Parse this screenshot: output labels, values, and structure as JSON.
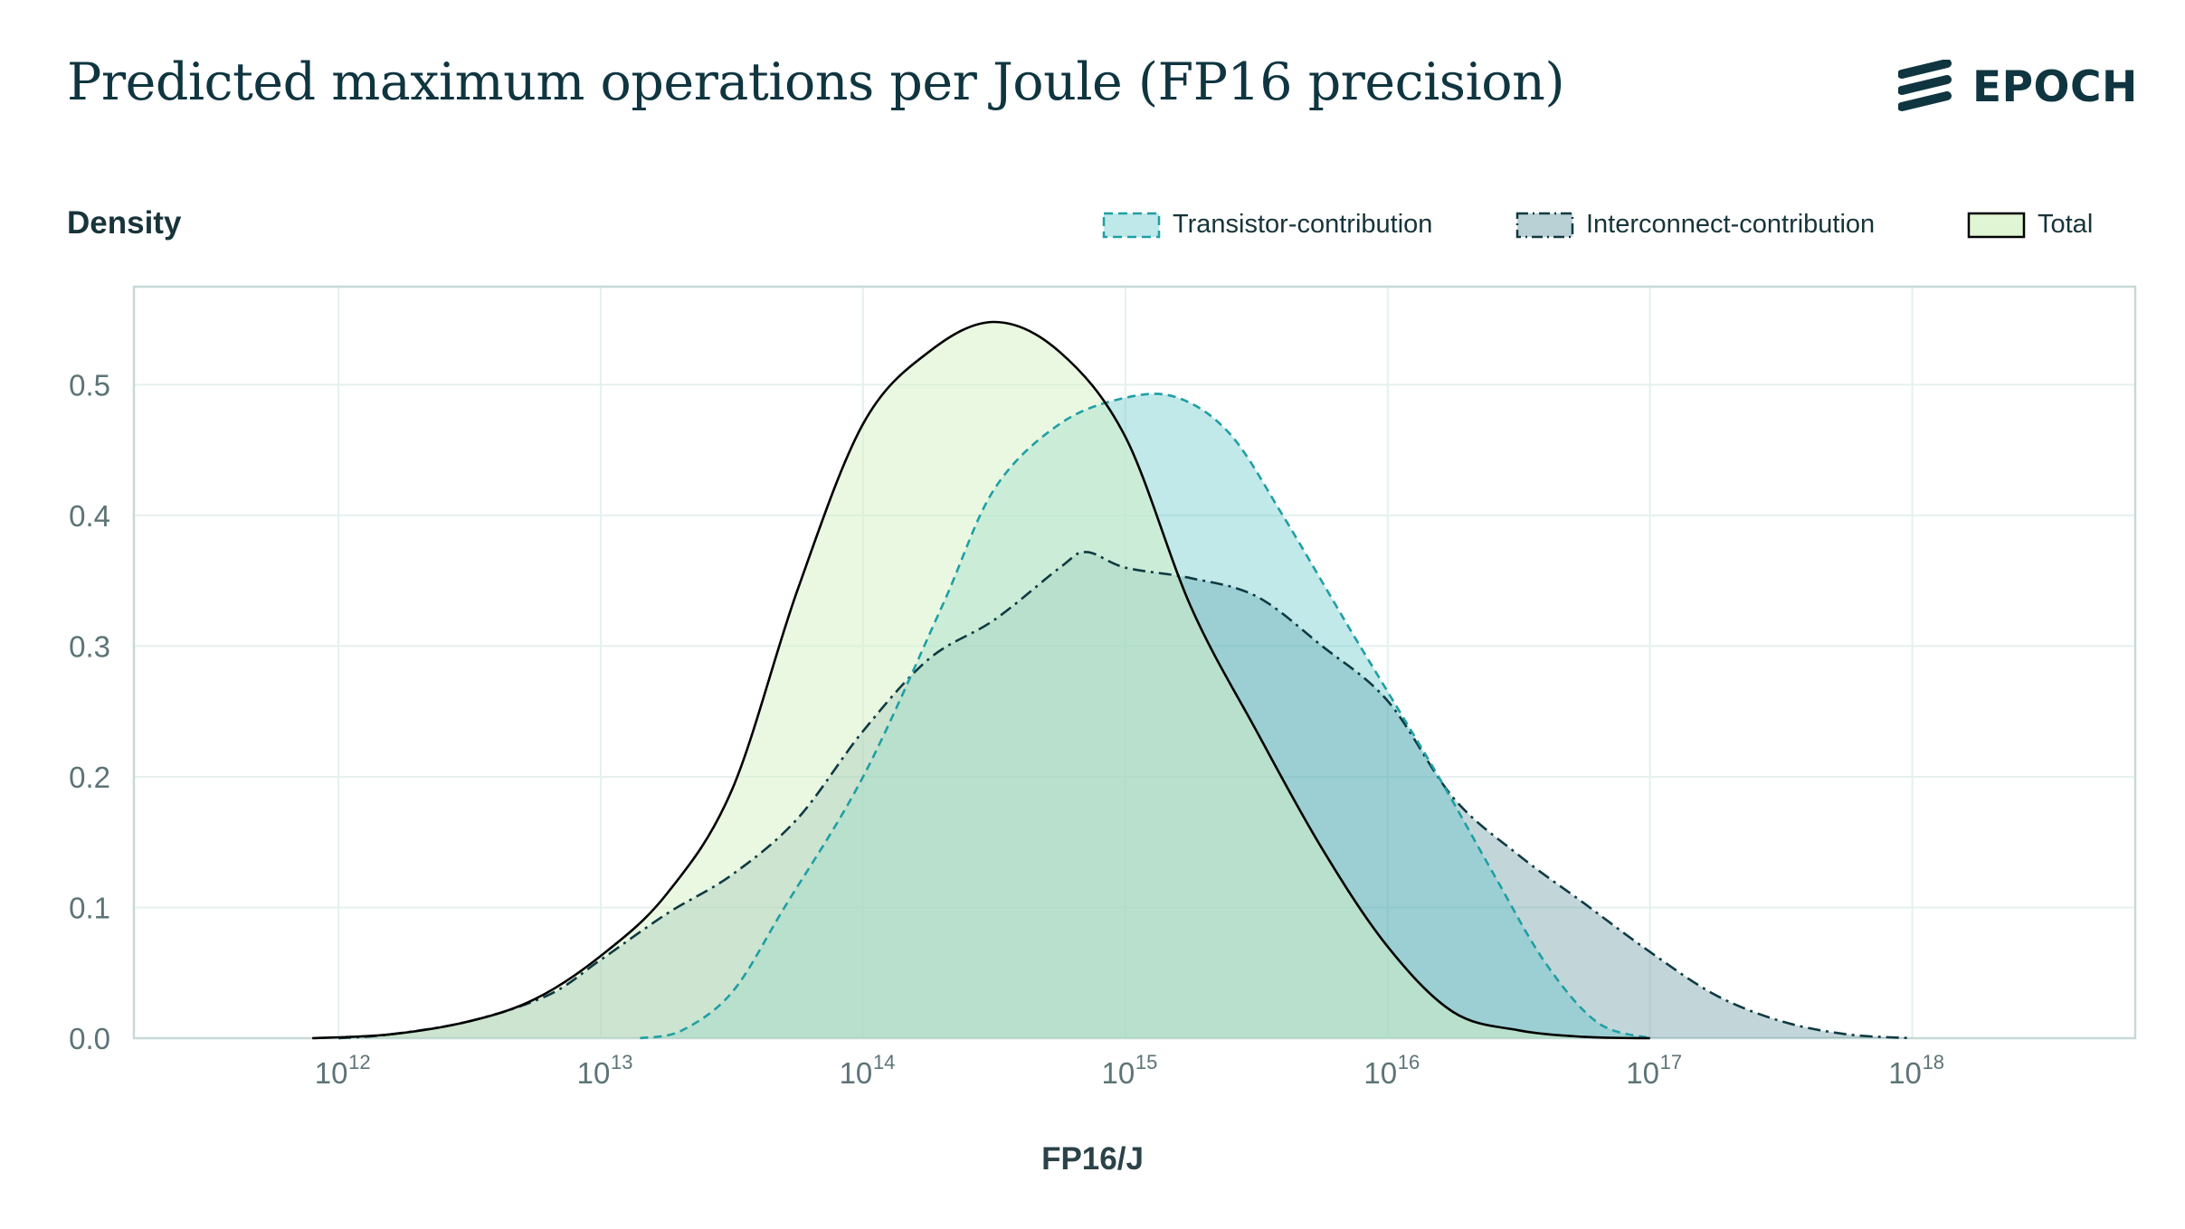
{
  "header": {
    "title": "Predicted maximum operations per Joule (FP16 precision)",
    "brand": "EPOCH"
  },
  "colors": {
    "transistor_fill": "#5cc6c9",
    "transistor_stroke": "#1f9fa4",
    "interconnect_fill": "#4f8a94",
    "interconnect_stroke": "#0f3a42",
    "total_fill": "#d6f2c6",
    "total_stroke": "#000000",
    "grid": "#e5f0ef",
    "axis": "#c7d9d8"
  },
  "chart_data": {
    "type": "area",
    "title": "Predicted maximum operations per Joule (FP16 precision)",
    "xlabel": "FP16/J",
    "ylabel": "Density",
    "x_scale": "log10",
    "xlim": [
      11.22,
      18.85
    ],
    "ylim": [
      0,
      0.575
    ],
    "x_ticks": [
      {
        "exp": 12,
        "base": "10",
        "sup": "12"
      },
      {
        "exp": 13,
        "base": "10",
        "sup": "13"
      },
      {
        "exp": 14,
        "base": "10",
        "sup": "14"
      },
      {
        "exp": 15,
        "base": "10",
        "sup": "15"
      },
      {
        "exp": 16,
        "base": "10",
        "sup": "16"
      },
      {
        "exp": 17,
        "base": "10",
        "sup": "17"
      },
      {
        "exp": 18,
        "base": "10",
        "sup": "18"
      }
    ],
    "y_ticks": [
      {
        "value": 0.0,
        "label": "0.0"
      },
      {
        "value": 0.1,
        "label": "0.1"
      },
      {
        "value": 0.2,
        "label": "0.2"
      },
      {
        "value": 0.3,
        "label": "0.3"
      },
      {
        "value": 0.4,
        "label": "0.4"
      },
      {
        "value": 0.5,
        "label": "0.5"
      }
    ],
    "grid": true,
    "legend": "top-right",
    "series": [
      {
        "name": "Interconnect-contribution",
        "style": "dashdot",
        "points": [
          [
            12.0,
            0.0
          ],
          [
            12.2,
            0.003
          ],
          [
            12.5,
            0.013
          ],
          [
            12.8,
            0.033
          ],
          [
            13.0,
            0.06
          ],
          [
            13.25,
            0.095
          ],
          [
            13.5,
            0.125
          ],
          [
            13.75,
            0.168
          ],
          [
            14.0,
            0.235
          ],
          [
            14.25,
            0.29
          ],
          [
            14.5,
            0.32
          ],
          [
            14.75,
            0.36
          ],
          [
            14.85,
            0.372
          ],
          [
            15.0,
            0.36
          ],
          [
            15.25,
            0.352
          ],
          [
            15.5,
            0.338
          ],
          [
            15.75,
            0.3
          ],
          [
            16.0,
            0.258
          ],
          [
            16.25,
            0.184
          ],
          [
            16.5,
            0.14
          ],
          [
            16.75,
            0.103
          ],
          [
            17.0,
            0.066
          ],
          [
            17.25,
            0.033
          ],
          [
            17.5,
            0.013
          ],
          [
            17.75,
            0.003
          ],
          [
            18.0,
            0.0
          ]
        ]
      },
      {
        "name": "Transistor-contribution",
        "style": "dashed",
        "points": [
          [
            13.15,
            0.0
          ],
          [
            13.3,
            0.005
          ],
          [
            13.5,
            0.035
          ],
          [
            13.7,
            0.1
          ],
          [
            14.0,
            0.2
          ],
          [
            14.3,
            0.33
          ],
          [
            14.5,
            0.42
          ],
          [
            14.75,
            0.47
          ],
          [
            15.0,
            0.49
          ],
          [
            15.2,
            0.49
          ],
          [
            15.4,
            0.462
          ],
          [
            15.6,
            0.4
          ],
          [
            15.85,
            0.315
          ],
          [
            16.0,
            0.265
          ],
          [
            16.2,
            0.198
          ],
          [
            16.4,
            0.127
          ],
          [
            16.6,
            0.058
          ],
          [
            16.8,
            0.012
          ],
          [
            17.0,
            0.0
          ]
        ]
      },
      {
        "name": "Total",
        "style": "solid",
        "points": [
          [
            11.9,
            0.0
          ],
          [
            12.2,
            0.003
          ],
          [
            12.5,
            0.013
          ],
          [
            12.75,
            0.03
          ],
          [
            13.0,
            0.063
          ],
          [
            13.25,
            0.11
          ],
          [
            13.5,
            0.19
          ],
          [
            13.75,
            0.343
          ],
          [
            14.0,
            0.47
          ],
          [
            14.25,
            0.525
          ],
          [
            14.5,
            0.548
          ],
          [
            14.75,
            0.525
          ],
          [
            15.0,
            0.46
          ],
          [
            15.25,
            0.33
          ],
          [
            15.5,
            0.235
          ],
          [
            15.75,
            0.145
          ],
          [
            16.0,
            0.07
          ],
          [
            16.25,
            0.02
          ],
          [
            16.5,
            0.006
          ],
          [
            16.75,
            0.001
          ],
          [
            17.0,
            0.0
          ]
        ]
      }
    ]
  }
}
